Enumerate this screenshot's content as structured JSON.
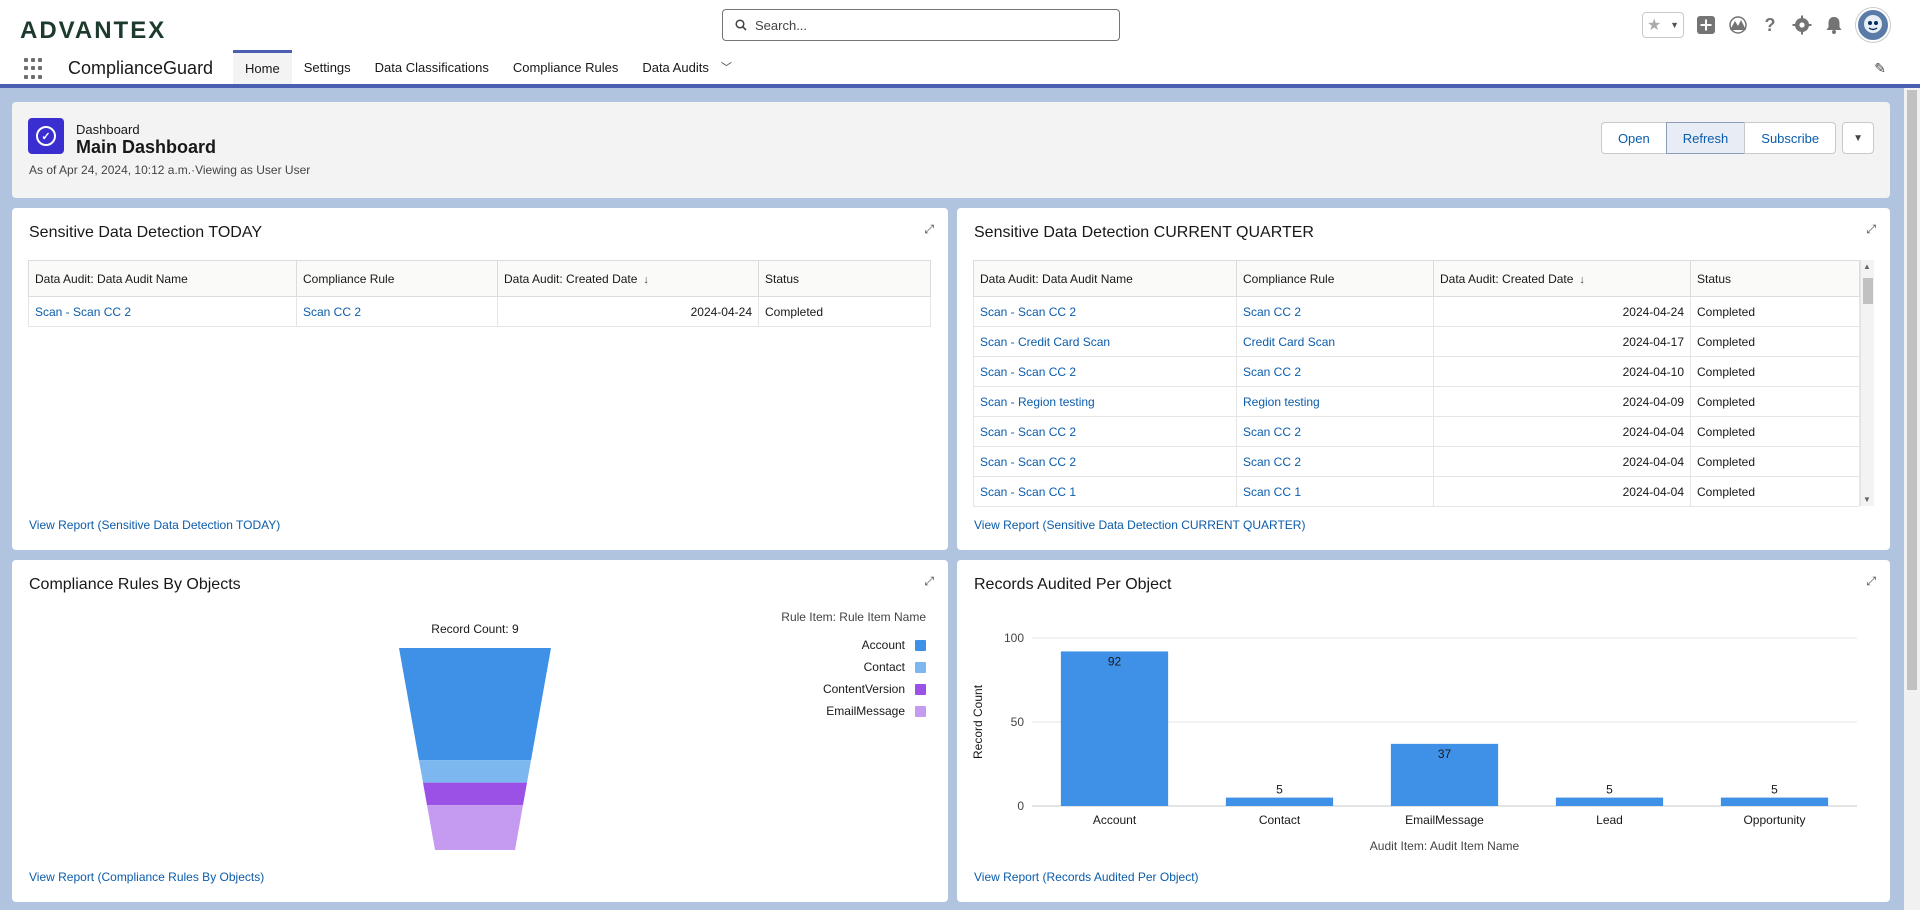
{
  "header": {
    "logo_text": "ADVANTEX",
    "search_placeholder": "Search..."
  },
  "nav": {
    "app_name": "ComplianceGuard",
    "tabs": [
      {
        "label": "Home",
        "active": true
      },
      {
        "label": "Settings"
      },
      {
        "label": "Data Classifications"
      },
      {
        "label": "Compliance Rules"
      },
      {
        "label": "Data Audits",
        "has_menu": true
      }
    ]
  },
  "dashboard": {
    "kicker": "Dashboard",
    "title": "Main Dashboard",
    "meta": "As of Apr 24, 2024, 10:12 a.m.·Viewing as User User",
    "buttons": {
      "open": "Open",
      "refresh": "Refresh",
      "subscribe": "Subscribe"
    }
  },
  "today": {
    "title": "Sensitive Data Detection TODAY",
    "columns": [
      "Data Audit: Data Audit Name",
      "Compliance Rule",
      "Data Audit: Created Date",
      "Status"
    ],
    "rows": [
      [
        "Scan - Scan CC 2",
        "Scan CC 2",
        "2024-04-24",
        "Completed"
      ]
    ],
    "footer": "View Report (Sensitive Data Detection TODAY)"
  },
  "quarter": {
    "title": "Sensitive Data Detection CURRENT QUARTER",
    "columns": [
      "Data Audit: Data Audit Name",
      "Compliance Rule",
      "Data Audit: Created Date",
      "Status"
    ],
    "rows": [
      [
        "Scan - Scan CC 2",
        "Scan CC 2",
        "2024-04-24",
        "Completed"
      ],
      [
        "Scan - Credit Card Scan",
        "Credit Card Scan",
        "2024-04-17",
        "Completed"
      ],
      [
        "Scan - Scan CC 2",
        "Scan CC 2",
        "2024-04-10",
        "Completed"
      ],
      [
        "Scan - Region testing",
        "Region testing",
        "2024-04-09",
        "Completed"
      ],
      [
        "Scan - Scan CC 2",
        "Scan CC 2",
        "2024-04-04",
        "Completed"
      ],
      [
        "Scan - Scan CC 2",
        "Scan CC 2",
        "2024-04-04",
        "Completed"
      ],
      [
        "Scan - Scan CC 1",
        "Scan CC 1",
        "2024-04-04",
        "Completed"
      ]
    ],
    "footer": "View Report (Sensitive Data Detection CURRENT QUARTER)"
  },
  "rules_card": {
    "title": "Compliance Rules By Objects",
    "footer": "View Report (Compliance Rules By Objects)"
  },
  "records_card": {
    "title": "Records Audited Per Object",
    "footer": "View Report (Records Audited Per Object)"
  },
  "chart_data": [
    {
      "type": "funnel",
      "title": "Record Count: 9",
      "legend_title": "Rule Item: Rule Item Name",
      "legend_position": "right",
      "segments": [
        {
          "name": "Account",
          "value": 5,
          "color": "#3e91e6"
        },
        {
          "name": "Contact",
          "value": 1,
          "color": "#7cb7f0"
        },
        {
          "name": "ContentVersion",
          "value": 1,
          "color": "#9b50e6"
        },
        {
          "name": "EmailMessage",
          "value": 2,
          "color": "#c49bf0"
        }
      ]
    },
    {
      "type": "bar",
      "categories": [
        "Account",
        "Contact",
        "EmailMessage",
        "Lead",
        "Opportunity"
      ],
      "values": [
        92,
        5,
        37,
        5,
        5
      ],
      "xlabel": "Audit Item: Audit Item Name",
      "ylabel": "Record Count",
      "ylim": [
        0,
        100
      ],
      "yticks": [
        0,
        50,
        100
      ],
      "color": "#3e91e6",
      "grid": true
    }
  ]
}
